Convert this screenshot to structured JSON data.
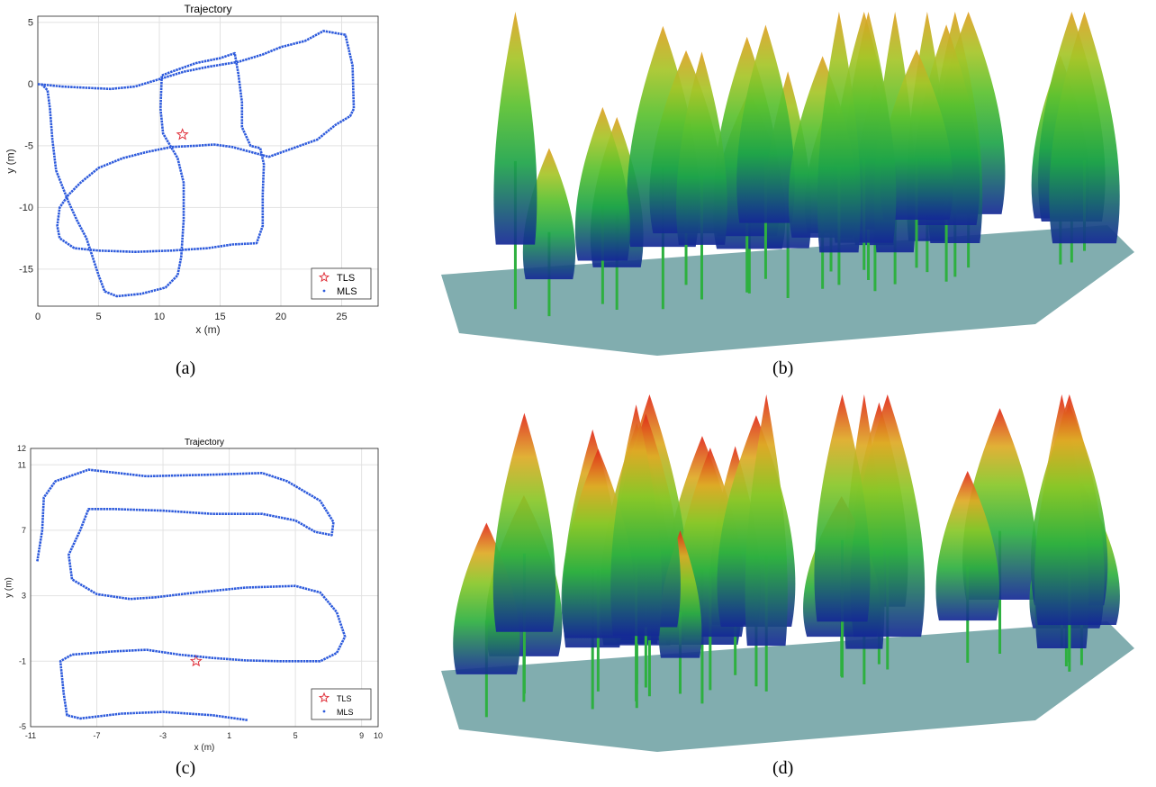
{
  "captions": {
    "a": "(a)",
    "b": "(b)",
    "c": "(c)",
    "d": "(d)"
  },
  "colors": {
    "trajectory": "#2e5bdc",
    "tls_marker": "#e0303a",
    "grid": "#e2e2e2",
    "axis": "#262626"
  },
  "chart_data": [
    {
      "type": "scatter",
      "title": "Trajectory",
      "xlabel": "x (m)",
      "ylabel": "y (m)",
      "xlim": [
        0,
        28
      ],
      "ylim": [
        -18,
        5.5
      ],
      "xticks": [
        0,
        5,
        10,
        15,
        20,
        25
      ],
      "yticks": [
        5,
        0,
        -5,
        -10,
        -15
      ],
      "grid": true,
      "legend": {
        "placement": "bottom-right",
        "entries": [
          "TLS",
          "MLS"
        ]
      },
      "series": [
        {
          "name": "TLS",
          "marker": "star",
          "points": [
            [
              11.9,
              -4.1
            ]
          ]
        },
        {
          "name": "MLS",
          "marker": "dot",
          "path": [
            [
              0,
              0
            ],
            [
              2,
              -0.2
            ],
            [
              4,
              -0.3
            ],
            [
              6,
              -0.4
            ],
            [
              8,
              -0.2
            ],
            [
              10,
              0.4
            ],
            [
              12,
              1.0
            ],
            [
              14,
              1.4
            ],
            [
              16.5,
              1.8
            ],
            [
              18.5,
              2.4
            ],
            [
              20,
              3.0
            ],
            [
              22,
              3.5
            ],
            [
              23.5,
              4.3
            ],
            [
              25.3,
              4.0
            ],
            [
              25.9,
              1.5
            ],
            [
              26,
              -2
            ],
            [
              25.7,
              -2.6
            ],
            [
              24.5,
              -3.3
            ],
            [
              23,
              -4.5
            ],
            [
              21,
              -5.2
            ],
            [
              19,
              -5.9
            ],
            [
              17.5,
              -5.5
            ],
            [
              16,
              -5.1
            ],
            [
              14.5,
              -4.9
            ],
            [
              13,
              -5.0
            ],
            [
              11,
              -5.1
            ],
            [
              9,
              -5.5
            ],
            [
              7,
              -6.0
            ],
            [
              5,
              -6.8
            ],
            [
              3.5,
              -8.0
            ],
            [
              2.5,
              -9.0
            ],
            [
              1.8,
              -10.0
            ],
            [
              1.6,
              -11.5
            ],
            [
              1.8,
              -12.5
            ],
            [
              3,
              -13.3
            ],
            [
              5,
              -13.5
            ],
            [
              8,
              -13.6
            ],
            [
              11,
              -13.5
            ],
            [
              14,
              -13.3
            ],
            [
              16,
              -13
            ],
            [
              18,
              -12.9
            ],
            [
              18.5,
              -11.5
            ],
            [
              18.5,
              -9
            ],
            [
              18.6,
              -6.5
            ],
            [
              18.3,
              -5.2
            ],
            [
              17.5,
              -5.0
            ],
            [
              16.8,
              -3.5
            ],
            [
              16.8,
              -1.5
            ],
            [
              16.5,
              0.8
            ],
            [
              16.2,
              2.5
            ],
            [
              15,
              2.1
            ],
            [
              13,
              1.7
            ],
            [
              11,
              1.0
            ],
            [
              10.2,
              0.7
            ],
            [
              10.1,
              -2
            ],
            [
              10.3,
              -4
            ],
            [
              11.5,
              -6
            ],
            [
              12,
              -8
            ],
            [
              12,
              -11
            ],
            [
              11.8,
              -14
            ],
            [
              11.5,
              -15.5
            ],
            [
              10.5,
              -16.5
            ],
            [
              8.5,
              -17.0
            ],
            [
              6.5,
              -17.2
            ],
            [
              5.5,
              -16.8
            ],
            [
              5,
              -15.5
            ],
            [
              4.5,
              -14
            ],
            [
              4,
              -12.5
            ],
            [
              3.2,
              -11
            ],
            [
              2.5,
              -9.5
            ],
            [
              1.5,
              -7
            ],
            [
              1.2,
              -4.5
            ],
            [
              1.0,
              -2
            ],
            [
              0.8,
              -0.5
            ],
            [
              0.3,
              0
            ]
          ]
        }
      ]
    },
    {
      "type": "scatter",
      "title": "Trajectory",
      "xlabel": "x (m)",
      "ylabel": "y (m)",
      "xlim": [
        -11,
        10
      ],
      "ylim": [
        -5,
        12
      ],
      "xticks": [
        -11,
        -7,
        -3,
        1,
        5,
        9,
        10
      ],
      "yticks": [
        12,
        11,
        7,
        3,
        -1,
        -5
      ],
      "grid": true,
      "legend": {
        "placement": "bottom-right",
        "entries": [
          "TLS",
          "MLS"
        ]
      },
      "series": [
        {
          "name": "TLS",
          "marker": "star",
          "points": [
            [
              -1.0,
              -1.0
            ]
          ]
        },
        {
          "name": "MLS",
          "marker": "dot",
          "path": [
            [
              2.1,
              -4.6
            ],
            [
              0,
              -4.3
            ],
            [
              -3,
              -4.1
            ],
            [
              -5.5,
              -4.2
            ],
            [
              -8.0,
              -4.5
            ],
            [
              -8.8,
              -4.3
            ],
            [
              -9.0,
              -3
            ],
            [
              -9.2,
              -1.0
            ],
            [
              -8.5,
              -0.6
            ],
            [
              -6,
              -0.4
            ],
            [
              -4,
              -0.3
            ],
            [
              -2,
              -0.6
            ],
            [
              0,
              -0.8
            ],
            [
              2,
              -0.95
            ],
            [
              4,
              -1.0
            ],
            [
              6.5,
              -1.0
            ],
            [
              7.5,
              -0.5
            ],
            [
              8.0,
              0.5
            ],
            [
              7.5,
              2.0
            ],
            [
              6.5,
              3.2
            ],
            [
              5,
              3.6
            ],
            [
              2,
              3.5
            ],
            [
              -1,
              3.2
            ],
            [
              -3.5,
              2.9
            ],
            [
              -5.0,
              2.8
            ],
            [
              -7,
              3.1
            ],
            [
              -8.5,
              4.0
            ],
            [
              -8.7,
              5.5
            ],
            [
              -8.0,
              7.0
            ],
            [
              -7.5,
              8.3
            ],
            [
              -6,
              8.3
            ],
            [
              -3,
              8.2
            ],
            [
              0,
              8.0
            ],
            [
              3,
              8.0
            ],
            [
              5,
              7.6
            ],
            [
              6.2,
              6.9
            ],
            [
              7.2,
              6.7
            ],
            [
              7.3,
              7.5
            ],
            [
              6.5,
              8.8
            ],
            [
              4.5,
              10.0
            ],
            [
              3.0,
              10.5
            ],
            [
              0,
              10.4
            ],
            [
              -4,
              10.3
            ],
            [
              -7.5,
              10.7
            ],
            [
              -9.5,
              10.0
            ],
            [
              -10.2,
              9.0
            ],
            [
              -10.3,
              7.0
            ],
            [
              -10.6,
              5.1
            ]
          ]
        }
      ]
    }
  ],
  "point_clouds": [
    {
      "id": "b",
      "depicts": "point-cloud-forest-plot-colored-by-height"
    },
    {
      "id": "d",
      "depicts": "point-cloud-forest-plot-colored-by-height"
    }
  ]
}
